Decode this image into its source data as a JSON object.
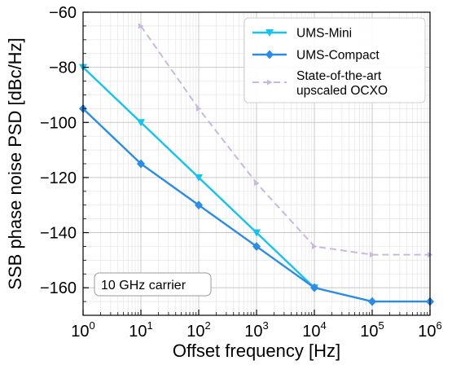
{
  "chart_data": {
    "type": "line",
    "xscale": "log",
    "xlabel": "Offset frequency [Hz]",
    "ylabel": "SSB phase noise PSD [dBc/Hz]",
    "xlim": [
      1,
      1000000
    ],
    "ylim": [
      -170,
      -60
    ],
    "grid": true,
    "legend_position": "top-right",
    "x_ticks": [
      {
        "mantissa": "10",
        "exponent": "0",
        "value": 1
      },
      {
        "mantissa": "10",
        "exponent": "1",
        "value": 10
      },
      {
        "mantissa": "10",
        "exponent": "2",
        "value": 100
      },
      {
        "mantissa": "10",
        "exponent": "3",
        "value": 1000
      },
      {
        "mantissa": "10",
        "exponent": "4",
        "value": 10000
      },
      {
        "mantissa": "10",
        "exponent": "5",
        "value": 100000
      },
      {
        "mantissa": "10",
        "exponent": "6",
        "value": 1000000
      }
    ],
    "y_ticks": [
      {
        "label": "−60",
        "value": -60
      },
      {
        "label": "−80",
        "value": -80
      },
      {
        "label": "−100",
        "value": -100
      },
      {
        "label": "−120",
        "value": -120
      },
      {
        "label": "−140",
        "value": -140
      },
      {
        "label": "−160",
        "value": -160
      }
    ],
    "series": [
      {
        "name": "UMS-Mini",
        "color": "#14c3ef",
        "marker": "triangle-down",
        "linestyle": "solid",
        "x": [
          1,
          10,
          100,
          1000,
          10000
        ],
        "y": [
          -80,
          -100,
          -120,
          -140,
          -160
        ]
      },
      {
        "name": "UMS-Compact",
        "color": "#2a8ce8",
        "marker": "diamond",
        "linestyle": "solid",
        "x": [
          1,
          10,
          100,
          1000,
          10000,
          100000,
          1000000
        ],
        "y": [
          -95,
          -115,
          -130,
          -145,
          -160,
          -165,
          -165
        ]
      },
      {
        "name": "State-of-the-art\nupscaled OCXO",
        "color": "#c9b8df",
        "marker": "triangle-right",
        "linestyle": "dashed",
        "x": [
          10,
          100,
          1000,
          10000,
          100000,
          1000000
        ],
        "y": [
          -65,
          -95,
          -122,
          -145,
          -148,
          -148
        ]
      }
    ],
    "annotation": "10 GHz carrier"
  }
}
